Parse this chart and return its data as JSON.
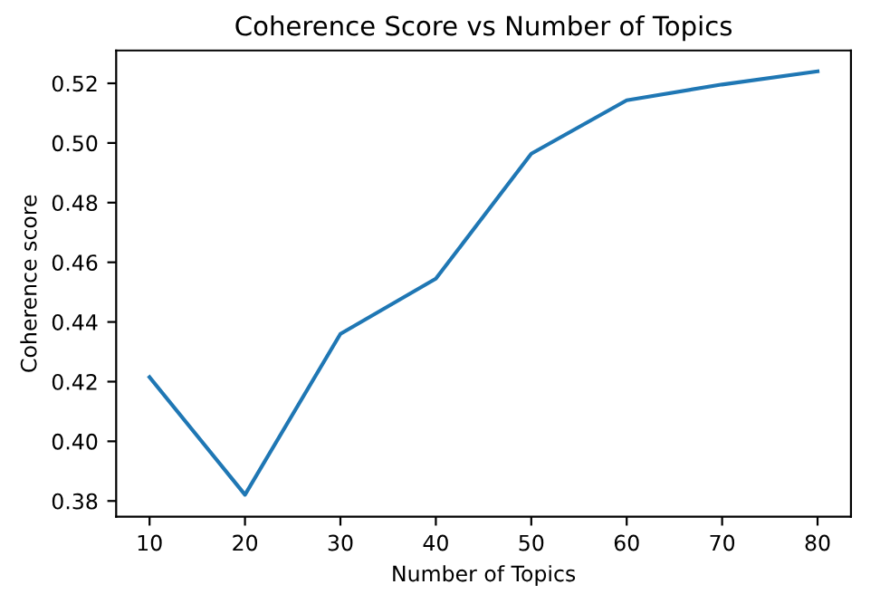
{
  "chart_data": {
    "type": "line",
    "title": "Coherence Score vs Number of Topics",
    "xlabel": "Number of Topics",
    "ylabel": "Coherence score",
    "x": [
      10,
      20,
      30,
      40,
      50,
      60,
      70,
      80
    ],
    "series": [
      {
        "color": "#1f77b4",
        "values": [
          0.4215,
          0.3821,
          0.436,
          0.4545,
          0.4964,
          0.5143,
          0.5196,
          0.524
        ]
      }
    ],
    "xlim": [
      6.5,
      83.5
    ],
    "xticks": [
      10,
      20,
      30,
      40,
      50,
      60,
      70,
      80
    ],
    "ylim": [
      0.3747,
      0.531
    ],
    "yticks": [
      {
        "value": 0.38,
        "label": "0.38"
      },
      {
        "value": 0.4,
        "label": "0.40"
      },
      {
        "value": 0.42,
        "label": "0.42"
      },
      {
        "value": 0.44,
        "label": "0.44"
      },
      {
        "value": 0.46,
        "label": "0.46"
      },
      {
        "value": 0.48,
        "label": "0.48"
      },
      {
        "value": 0.5,
        "label": "0.50"
      },
      {
        "value": 0.52,
        "label": "0.52"
      }
    ]
  }
}
